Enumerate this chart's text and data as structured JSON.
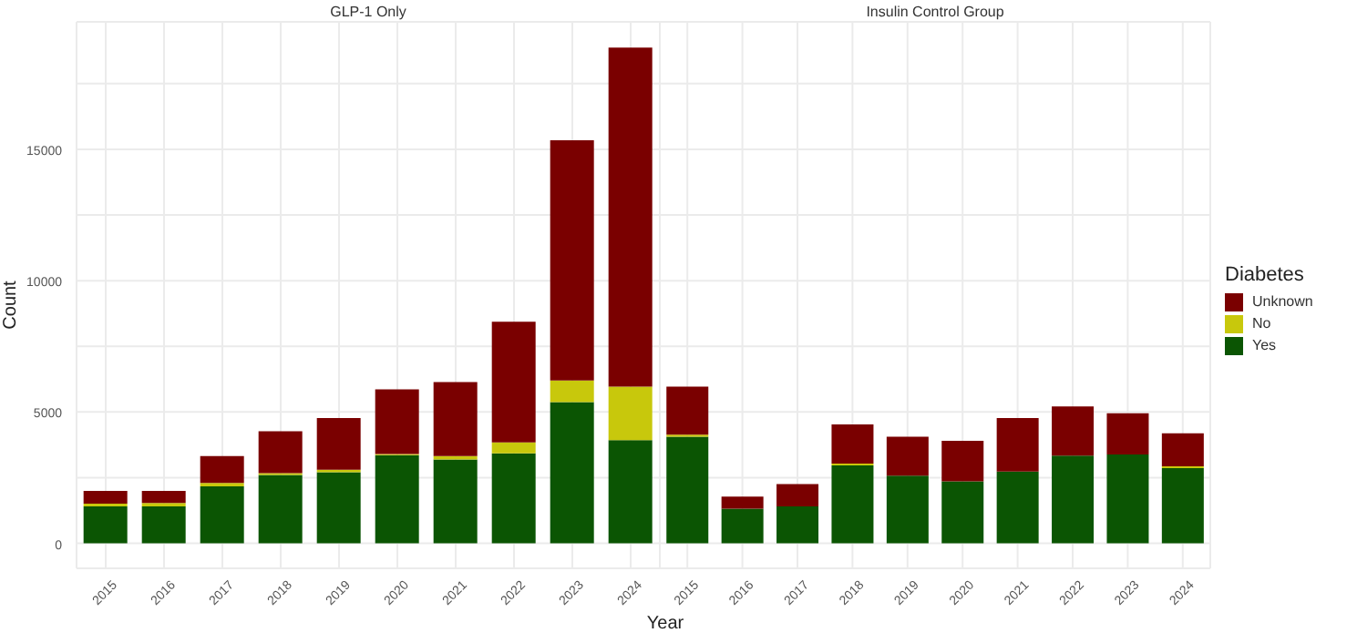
{
  "chart_data": [
    {
      "type": "bar",
      "title": "GLP-1 Only",
      "xlabel": "Year",
      "ylabel": "Count",
      "stacked": true,
      "grid": true,
      "categories": [
        "2015",
        "2016",
        "2017",
        "2018",
        "2019",
        "2020",
        "2021",
        "2022",
        "2023",
        "2024"
      ],
      "ylim": [
        -950,
        19850
      ],
      "yticks": [
        0,
        {
          "value": 2500,
          "label": null
        },
        5000,
        {
          "value": 7500,
          "label": null
        },
        10000,
        {
          "value": 12500,
          "label": null
        },
        15000,
        {
          "value": 17500,
          "label": null
        }
      ],
      "series": [
        {
          "color": "#0b5503",
          "values": [
            1410,
            1410,
            2170,
            2600,
            2710,
            3360,
            3190,
            3430,
            5380,
            3930
          ]
        },
        {
          "color": "#c8c80c",
          "values": [
            100,
            130,
            130,
            70,
            90,
            40,
            130,
            410,
            820,
            2040
          ]
        },
        {
          "color": "#7a0000",
          "values": [
            490,
            460,
            1020,
            1600,
            1970,
            2460,
            2820,
            4600,
            9140,
            12900
          ]
        }
      ]
    },
    {
      "type": "bar",
      "title": "Insulin Control Group",
      "stacked": true,
      "grid": true,
      "tick_labels": "x",
      "legend": "right",
      "legend_title": "Diabetes",
      "categories": [
        "2015",
        "2016",
        "2017",
        "2018",
        "2019",
        "2020",
        "2021",
        "2022",
        "2023",
        "2024"
      ],
      "ylim": [
        -950,
        19850
      ],
      "yticks": [
        0,
        {
          "value": 2500,
          "label": null
        },
        5000,
        {
          "value": 7500,
          "label": null
        },
        10000,
        {
          "value": 12500,
          "label": null
        },
        15000,
        {
          "value": 17500,
          "label": null
        }
      ],
      "series": [
        {
          "name": "Yes",
          "color": "#0b5503",
          "values": [
            4060,
            1320,
            1410,
            2970,
            2580,
            2360,
            2730,
            3340,
            3380,
            2860
          ]
        },
        {
          "name": "No",
          "color": "#c8c80c",
          "values": [
            80,
            0,
            0,
            70,
            0,
            0,
            0,
            0,
            0,
            70
          ]
        },
        {
          "name": "Unknown",
          "color": "#7a0000",
          "values": [
            1830,
            460,
            850,
            1490,
            1480,
            1540,
            2040,
            1870,
            1570,
            1260
          ]
        }
      ]
    }
  ]
}
